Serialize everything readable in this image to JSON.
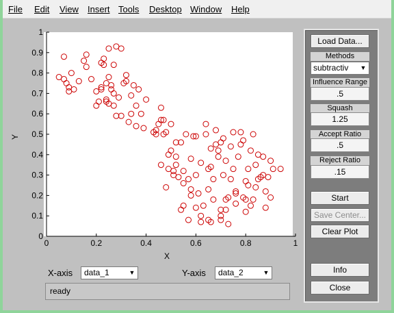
{
  "menu": [
    "File",
    "Edit",
    "View",
    "Insert",
    "Tools",
    "Desktop",
    "Window",
    "Help"
  ],
  "plot": {
    "xlabel": "X",
    "ylabel": "Y",
    "xticks": [
      "0",
      "0.2",
      "0.4",
      "0.6",
      "0.8",
      "1"
    ],
    "yticks": [
      "0",
      "0.1",
      "0.2",
      "0.3",
      "0.4",
      "0.5",
      "0.6",
      "0.7",
      "0.8",
      "0.9",
      "1"
    ]
  },
  "axes_select": {
    "x_label": "X-axis",
    "x_value": "data_1",
    "y_label": "Y-axis",
    "y_value": "data_2"
  },
  "status": "ready",
  "panel": {
    "load_label": "Load Data...",
    "methods_label": "Methods",
    "method_value": "subtractiv",
    "influence_label": "Influence Range",
    "influence_value": ".5",
    "squash_label": "Squash",
    "squash_value": "1.25",
    "accept_label": "Accept Ratio",
    "accept_value": ".5",
    "reject_label": "Reject Ratio",
    "reject_value": ".15",
    "start_label": "Start",
    "save_center_label": "Save Center...",
    "clear_label": "Clear Plot",
    "info_label": "Info",
    "close_label": "Close"
  },
  "chart_data": {
    "type": "scatter",
    "xlabel": "X",
    "ylabel": "Y",
    "xlim": [
      0,
      1
    ],
    "ylim": [
      0,
      1
    ],
    "marker_color": "#cc0000",
    "x": [
      0.05,
      0.07,
      0.08,
      0.09,
      0.09,
      0.1,
      0.13,
      0.15,
      0.16,
      0.16,
      0.18,
      0.2,
      0.21,
      0.22,
      0.22,
      0.23,
      0.23,
      0.24,
      0.24,
      0.25,
      0.25,
      0.25,
      0.26,
      0.26,
      0.27,
      0.27,
      0.27,
      0.28,
      0.29,
      0.3,
      0.31,
      0.32,
      0.33,
      0.34,
      0.35,
      0.36,
      0.36,
      0.37,
      0.38,
      0.39,
      0.4,
      0.43,
      0.44,
      0.45,
      0.46,
      0.46,
      0.47,
      0.47,
      0.48,
      0.49,
      0.49,
      0.5,
      0.51,
      0.51,
      0.52,
      0.52,
      0.53,
      0.54,
      0.54,
      0.55,
      0.55,
      0.56,
      0.57,
      0.57,
      0.58,
      0.58,
      0.59,
      0.6,
      0.6,
      0.61,
      0.62,
      0.62,
      0.63,
      0.64,
      0.64,
      0.65,
      0.65,
      0.66,
      0.66,
      0.67,
      0.67,
      0.68,
      0.68,
      0.69,
      0.69,
      0.7,
      0.7,
      0.7,
      0.71,
      0.71,
      0.72,
      0.72,
      0.73,
      0.73,
      0.74,
      0.74,
      0.75,
      0.75,
      0.76,
      0.76,
      0.77,
      0.78,
      0.78,
      0.79,
      0.79,
      0.8,
      0.8,
      0.81,
      0.81,
      0.82,
      0.82,
      0.83,
      0.83,
      0.84,
      0.85,
      0.85,
      0.86,
      0.87,
      0.87,
      0.88,
      0.88,
      0.89,
      0.9,
      0.9,
      0.91,
      0.94,
      0.07,
      0.11,
      0.2,
      0.22,
      0.24,
      0.28,
      0.3,
      0.32,
      0.34,
      0.44,
      0.46,
      0.48,
      0.5,
      0.52,
      0.55,
      0.58,
      0.62,
      0.65,
      0.7,
      0.72,
      0.76,
      0.8,
      0.84,
      0.66,
      0.6
    ],
    "y": [
      0.78,
      0.88,
      0.75,
      0.71,
      0.73,
      0.8,
      0.76,
      0.86,
      0.89,
      0.83,
      0.77,
      0.71,
      0.66,
      0.72,
      0.73,
      0.84,
      0.87,
      0.66,
      0.67,
      0.78,
      0.92,
      0.65,
      0.72,
      0.74,
      0.64,
      0.7,
      0.84,
      0.93,
      0.68,
      0.59,
      0.75,
      0.76,
      0.56,
      0.69,
      0.74,
      0.64,
      0.54,
      0.72,
      0.6,
      0.53,
      0.67,
      0.51,
      0.5,
      0.55,
      0.63,
      0.35,
      0.57,
      0.5,
      0.24,
      0.33,
      0.4,
      0.55,
      0.3,
      0.32,
      0.46,
      0.39,
      0.29,
      0.13,
      0.46,
      0.15,
      0.32,
      0.5,
      0.28,
      0.08,
      0.38,
      0.23,
      0.49,
      0.14,
      0.3,
      0.21,
      0.1,
      0.36,
      0.15,
      0.5,
      0.55,
      0.08,
      0.23,
      0.07,
      0.43,
      0.18,
      0.28,
      0.45,
      0.52,
      0.39,
      0.42,
      0.46,
      0.1,
      0.13,
      0.3,
      0.48,
      0.18,
      0.37,
      0.06,
      0.19,
      0.28,
      0.44,
      0.33,
      0.51,
      0.16,
      0.21,
      0.39,
      0.45,
      0.51,
      0.47,
      0.19,
      0.27,
      0.12,
      0.25,
      0.33,
      0.15,
      0.42,
      0.5,
      0.18,
      0.35,
      0.4,
      0.28,
      0.29,
      0.39,
      0.3,
      0.14,
      0.22,
      0.29,
      0.37,
      0.19,
      0.33,
      0.33,
      0.77,
      0.72,
      0.64,
      0.85,
      0.75,
      0.59,
      0.92,
      0.79,
      0.6,
      0.52,
      0.57,
      0.51,
      0.42,
      0.35,
      0.26,
      0.2,
      0.07,
      0.33,
      0.08,
      0.13,
      0.22,
      0.18,
      0.24,
      0.34,
      0.49
    ]
  }
}
